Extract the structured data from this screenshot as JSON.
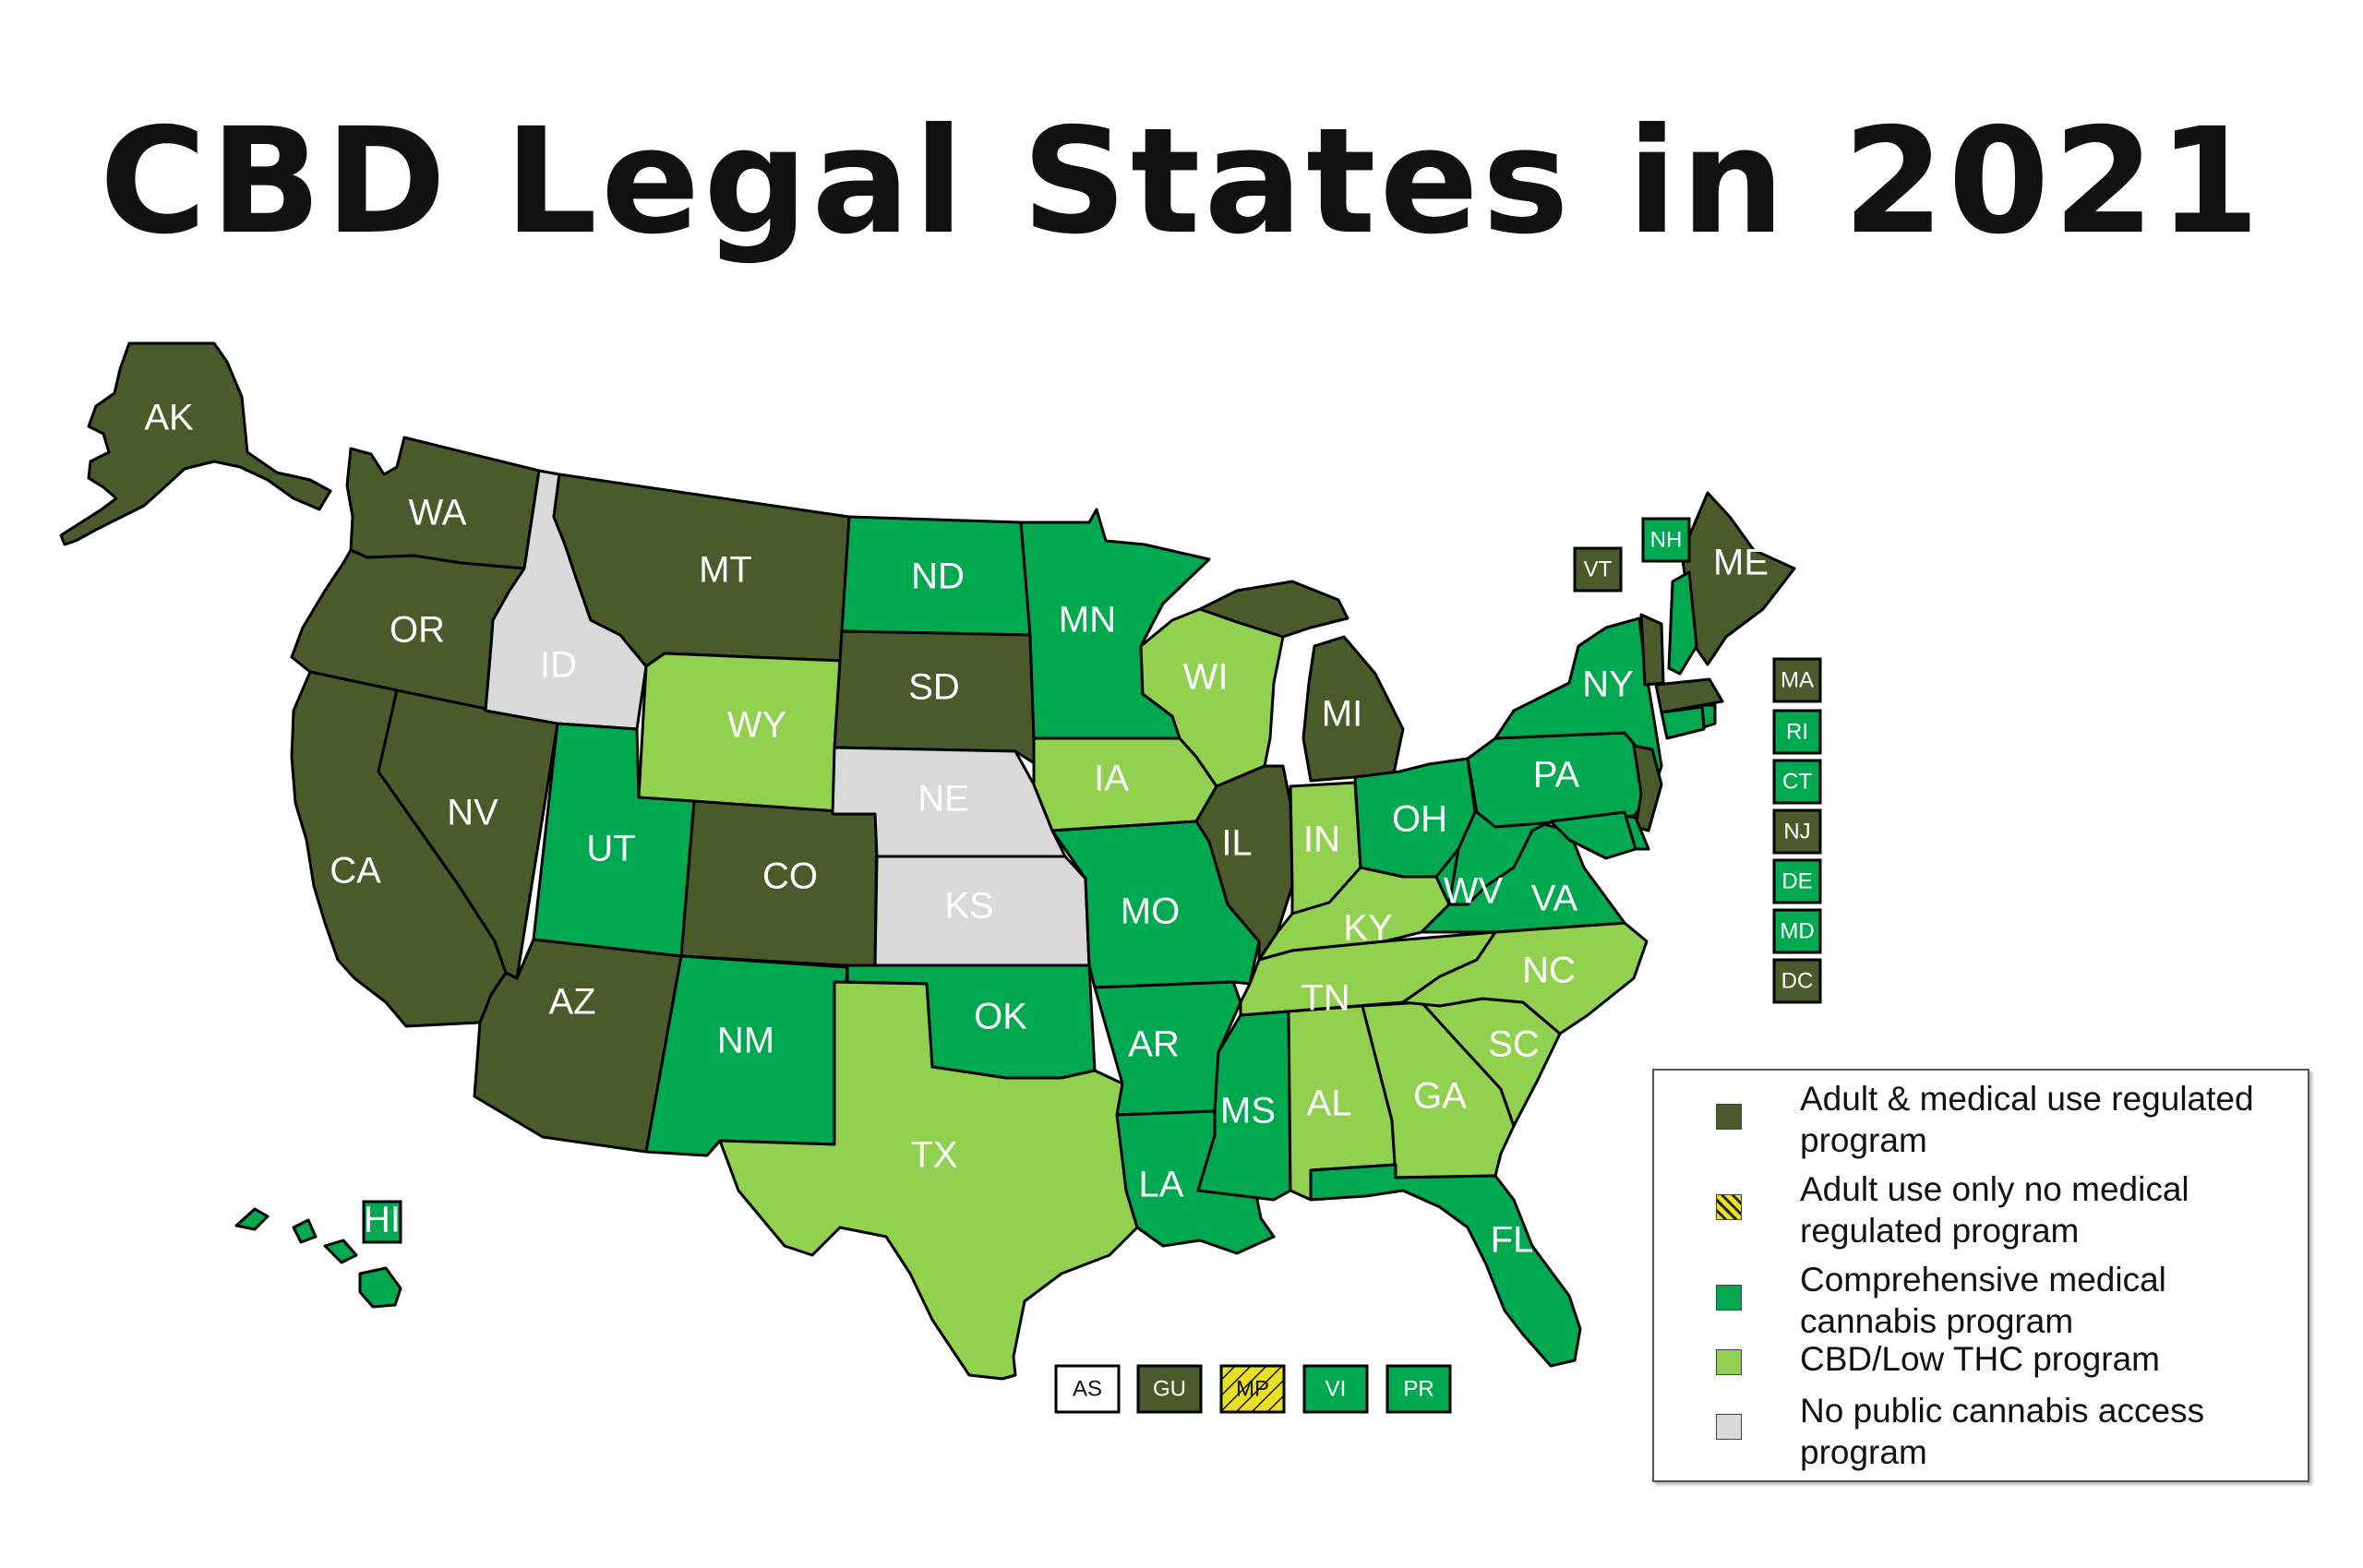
{
  "title": "CBD Legal States in 2021",
  "colors": {
    "adult_medical": "#4a5a2a",
    "adult_only": "#e8e020",
    "comprehensive_medical": "#00a94f",
    "cbd_low_thc": "#92d050",
    "no_program": "#d9d9d9",
    "border": "#000000"
  },
  "states": [
    {
      "abbr": "AK",
      "category": "adult_medical"
    },
    {
      "abbr": "WA",
      "category": "adult_medical"
    },
    {
      "abbr": "OR",
      "category": "adult_medical"
    },
    {
      "abbr": "CA",
      "category": "adult_medical"
    },
    {
      "abbr": "NV",
      "category": "adult_medical"
    },
    {
      "abbr": "ID",
      "category": "no_program"
    },
    {
      "abbr": "MT",
      "category": "adult_medical"
    },
    {
      "abbr": "WY",
      "category": "cbd_low_thc"
    },
    {
      "abbr": "UT",
      "category": "comprehensive_medical"
    },
    {
      "abbr": "AZ",
      "category": "adult_medical"
    },
    {
      "abbr": "CO",
      "category": "adult_medical"
    },
    {
      "abbr": "NM",
      "category": "comprehensive_medical"
    },
    {
      "abbr": "ND",
      "category": "comprehensive_medical"
    },
    {
      "abbr": "SD",
      "category": "adult_medical"
    },
    {
      "abbr": "NE",
      "category": "no_program"
    },
    {
      "abbr": "KS",
      "category": "no_program"
    },
    {
      "abbr": "OK",
      "category": "comprehensive_medical"
    },
    {
      "abbr": "TX",
      "category": "cbd_low_thc"
    },
    {
      "abbr": "MN",
      "category": "comprehensive_medical"
    },
    {
      "abbr": "IA",
      "category": "cbd_low_thc"
    },
    {
      "abbr": "MO",
      "category": "comprehensive_medical"
    },
    {
      "abbr": "AR",
      "category": "comprehensive_medical"
    },
    {
      "abbr": "LA",
      "category": "comprehensive_medical"
    },
    {
      "abbr": "WI",
      "category": "cbd_low_thc"
    },
    {
      "abbr": "IL",
      "category": "adult_medical"
    },
    {
      "abbr": "MI",
      "category": "adult_medical"
    },
    {
      "abbr": "IN",
      "category": "cbd_low_thc"
    },
    {
      "abbr": "OH",
      "category": "comprehensive_medical"
    },
    {
      "abbr": "KY",
      "category": "cbd_low_thc"
    },
    {
      "abbr": "TN",
      "category": "cbd_low_thc"
    },
    {
      "abbr": "MS",
      "category": "comprehensive_medical"
    },
    {
      "abbr": "AL",
      "category": "cbd_low_thc"
    },
    {
      "abbr": "GA",
      "category": "cbd_low_thc"
    },
    {
      "abbr": "FL",
      "category": "comprehensive_medical"
    },
    {
      "abbr": "SC",
      "category": "cbd_low_thc"
    },
    {
      "abbr": "NC",
      "category": "cbd_low_thc"
    },
    {
      "abbr": "VA",
      "category": "comprehensive_medical"
    },
    {
      "abbr": "WV",
      "category": "comprehensive_medical"
    },
    {
      "abbr": "PA",
      "category": "comprehensive_medical"
    },
    {
      "abbr": "NY",
      "category": "comprehensive_medical"
    },
    {
      "abbr": "ME",
      "category": "adult_medical"
    },
    {
      "abbr": "HI",
      "category": "comprehensive_medical"
    }
  ],
  "east_callouts": [
    {
      "abbr": "VT",
      "category": "adult_medical"
    },
    {
      "abbr": "NH",
      "category": "comprehensive_medical"
    },
    {
      "abbr": "MA",
      "category": "adult_medical"
    },
    {
      "abbr": "RI",
      "category": "comprehensive_medical"
    },
    {
      "abbr": "CT",
      "category": "comprehensive_medical"
    },
    {
      "abbr": "NJ",
      "category": "adult_medical"
    },
    {
      "abbr": "DE",
      "category": "comprehensive_medical"
    },
    {
      "abbr": "MD",
      "category": "comprehensive_medical"
    },
    {
      "abbr": "DC",
      "category": "adult_medical"
    }
  ],
  "territories": [
    {
      "abbr": "AS",
      "category": "none"
    },
    {
      "abbr": "GU",
      "category": "adult_medical"
    },
    {
      "abbr": "MP",
      "category": "adult_only"
    },
    {
      "abbr": "VI",
      "category": "comprehensive_medical"
    },
    {
      "abbr": "PR",
      "category": "comprehensive_medical"
    }
  ],
  "legend": [
    {
      "category": "adult_medical",
      "label": "Adult & medical use regulated program"
    },
    {
      "category": "adult_only",
      "label": "Adult use only no medical regulated program"
    },
    {
      "category": "comprehensive_medical",
      "label": "Comprehensive medical cannabis program"
    },
    {
      "category": "cbd_low_thc",
      "label": "CBD/Low THC program"
    },
    {
      "category": "no_program",
      "label": "No public cannabis access program"
    }
  ]
}
